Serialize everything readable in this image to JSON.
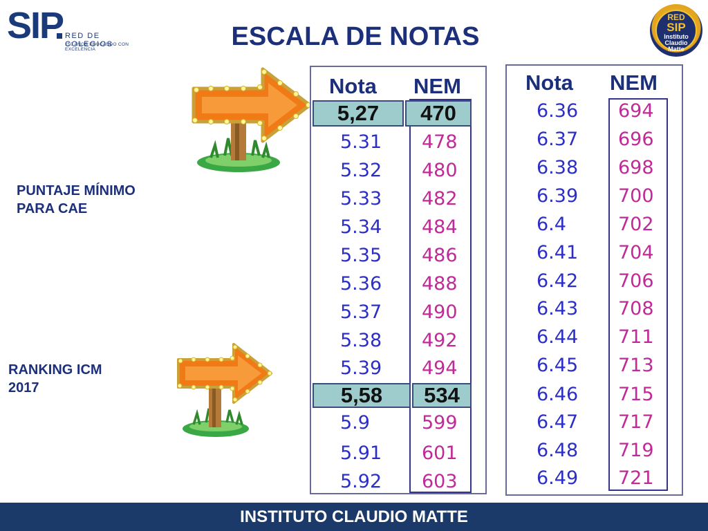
{
  "logo": {
    "main": "SIP",
    "line1": "RED DE COLEGIOS",
    "line2": "150 AÑOS EDUCANDO CON EXCELENCIA"
  },
  "title": "ESCALA DE NOTAS",
  "badge": {
    "line1": "RED",
    "line2": "SIP",
    "line3": "Instituto",
    "line4": "Claudio",
    "line5": "Matte"
  },
  "labels": {
    "minimo": [
      "PUNTAJE MÍNIMO",
      "PARA CAE"
    ],
    "ranking": [
      "RANKING ICM",
      "2017"
    ]
  },
  "table_left": {
    "header_nota": "Nota",
    "header_nem": "NEM",
    "highlight_top": {
      "nota": "5,27",
      "nem": "470"
    },
    "rows": [
      {
        "nota": "5.31",
        "nem": "478"
      },
      {
        "nota": "5.32",
        "nem": "480"
      },
      {
        "nota": "5.33",
        "nem": "482"
      },
      {
        "nota": "5.34",
        "nem": "484"
      },
      {
        "nota": "5.35",
        "nem": "486"
      },
      {
        "nota": "5.36",
        "nem": "488"
      },
      {
        "nota": "5.37",
        "nem": "490"
      },
      {
        "nota": "5.38",
        "nem": "492"
      },
      {
        "nota": "5.39",
        "nem": "494"
      }
    ],
    "highlight_mid": {
      "nota": "5,58",
      "nem": "534"
    },
    "rows_after": [
      {
        "nota": "5.9",
        "nem": "599"
      },
      {
        "nota": "5.91",
        "nem": "601"
      },
      {
        "nota": "5.92",
        "nem": "603"
      }
    ]
  },
  "table_right": {
    "header_nota": "Nota",
    "header_nem": "NEM",
    "rows": [
      {
        "nota": "6.36",
        "nem": "694"
      },
      {
        "nota": "6.37",
        "nem": "696"
      },
      {
        "nota": "6.38",
        "nem": "698"
      },
      {
        "nota": "6.39",
        "nem": "700"
      },
      {
        "nota": "6.4",
        "nem": "702"
      },
      {
        "nota": "6.41",
        "nem": "704"
      },
      {
        "nota": "6.42",
        "nem": "706"
      },
      {
        "nota": "6.43",
        "nem": "708"
      },
      {
        "nota": "6.44",
        "nem": "711"
      },
      {
        "nota": "6.45",
        "nem": "713"
      },
      {
        "nota": "6.46",
        "nem": "715"
      },
      {
        "nota": "6.47",
        "nem": "717"
      },
      {
        "nota": "6.48",
        "nem": "719"
      },
      {
        "nota": "6.49",
        "nem": "721"
      }
    ]
  },
  "footer": "INSTITUTO CLAUDIO MATTE",
  "colors": {
    "nota": "#2b2fc8",
    "nem": "#c02a98",
    "heading": "#1c2f7a",
    "highlight": "#9ecccc",
    "footer": "#1b3a6a"
  },
  "icons": {
    "arrow": "signpost-arrow-icon"
  }
}
